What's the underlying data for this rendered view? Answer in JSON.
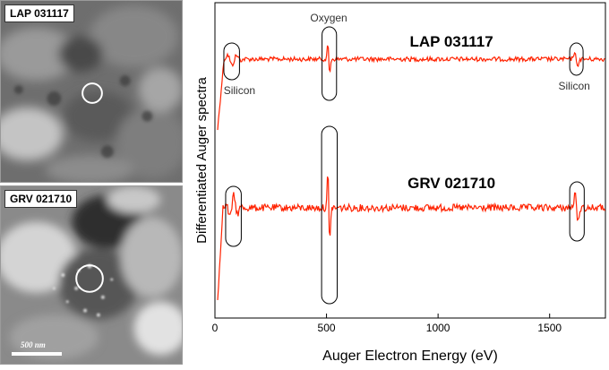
{
  "images": [
    {
      "label": "LAP 031117",
      "has_scale_bar": false
    },
    {
      "label": "GRV 021710",
      "has_scale_bar": true,
      "scale_bar_text": "500 nm"
    }
  ],
  "chart_data": {
    "type": "line",
    "xlabel": "Auger Electron Energy (eV)",
    "ylabel": "Differentiated Auger spectra",
    "xlim": [
      0,
      1750
    ],
    "x_ticks": [
      0,
      500,
      1000,
      1500
    ],
    "x_tick_labels": [
      "0",
      "500",
      "1000",
      "1500"
    ],
    "y_ticks_shown": false,
    "grid": false,
    "line_color": "#ff2200",
    "series": [
      {
        "name": "LAP 031117",
        "peaks": [
          {
            "x": 70,
            "element": "Silicon"
          },
          {
            "x": 510,
            "element": "Oxygen"
          },
          {
            "x": 1620,
            "element": "Silicon"
          }
        ]
      },
      {
        "name": "GRV 021710",
        "peaks": [
          {
            "x": 80,
            "element": "Silicon"
          },
          {
            "x": 510,
            "element": "Oxygen"
          },
          {
            "x": 1620,
            "element": "Silicon"
          }
        ]
      }
    ],
    "annotations": [
      "Oxygen",
      "Silicon",
      "Silicon"
    ]
  }
}
